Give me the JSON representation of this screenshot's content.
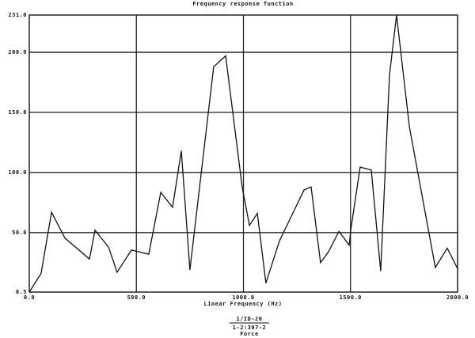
{
  "chart_data": {
    "type": "line",
    "title": "Frequency response function",
    "x_label": "Linear Frequency (Hz)",
    "footer": [
      "1/ID-20",
      "1-2:307-2",
      "Force"
    ],
    "x": [
      0,
      55,
      104,
      166,
      281,
      307,
      370,
      410,
      477,
      558,
      614,
      669,
      710,
      750,
      861,
      917,
      994,
      1028,
      1065,
      1105,
      1168,
      1283,
      1316,
      1360,
      1397,
      1446,
      1494,
      1501,
      1545,
      1597,
      1641,
      1682,
      1715,
      1775,
      1896,
      1952,
      2000
    ],
    "series": [
      {
        "color": "#111111",
        "values": [
          0.5,
          16,
          67,
          45.5,
          28,
          52,
          38,
          17,
          35.5,
          32,
          83.5,
          71,
          118,
          19,
          188,
          197,
          88,
          56,
          66,
          8,
          43,
          85.5,
          88,
          25,
          34,
          51,
          39.5,
          52,
          104.5,
          102,
          18,
          181,
          231,
          138,
          21,
          37,
          20
        ]
      }
    ],
    "xlim": [
      0,
      2000
    ],
    "ylim": [
      0.5,
      231
    ],
    "xticks": [
      {
        "value": 0,
        "label": "0.0"
      },
      {
        "value": 500,
        "label": "500.0"
      },
      {
        "value": 1000,
        "label": "1000.0"
      },
      {
        "value": 1500,
        "label": "1500.0"
      },
      {
        "value": 2000,
        "label": "2000.0"
      }
    ],
    "yticks": [
      0.5,
      {
        "value": 50,
        "label": "50.0"
      },
      {
        "value": 100,
        "label": "100.0"
      },
      {
        "value": 150,
        "label": "150.0"
      },
      {
        "value": 200,
        "label": "200.0"
      },
      {
        "value": 231,
        "label": "231.0"
      }
    ],
    "grid": true
  }
}
